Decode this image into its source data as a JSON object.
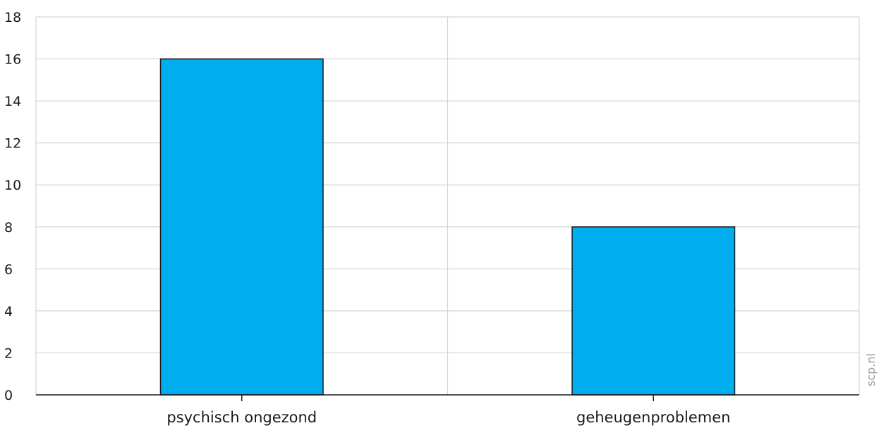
{
  "chart_data": {
    "type": "bar",
    "categories": [
      "psychisch ongezond",
      "geheugenproblemen"
    ],
    "values": [
      16,
      8
    ],
    "title": "",
    "xlabel": "",
    "ylabel": "",
    "ylim": [
      0,
      18
    ],
    "yticks": [
      "0",
      "2",
      "4",
      "6",
      "8",
      "10",
      "12",
      "14",
      "16",
      "18"
    ],
    "grid": true,
    "legend": "none",
    "bar_color": "#00adef",
    "bar_edge_color": "#1a1a1a",
    "grid_color": "#d4d4d4",
    "source": "scp.nl"
  }
}
